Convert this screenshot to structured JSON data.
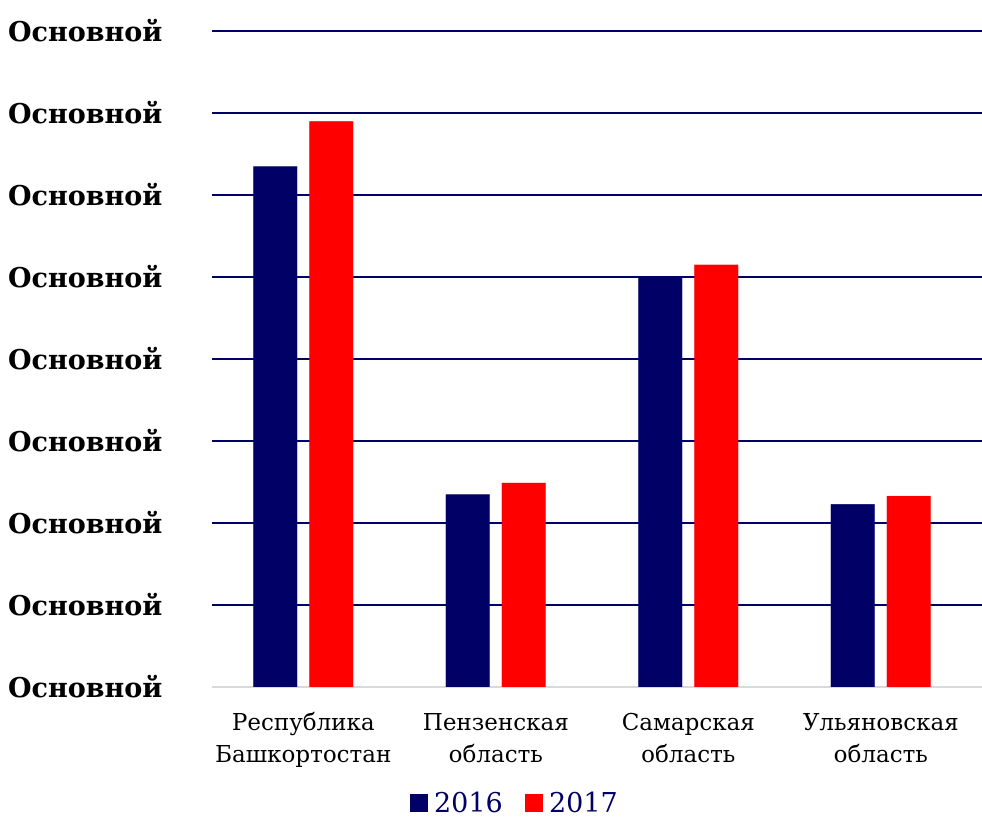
{
  "chart_data": {
    "type": "bar",
    "categories": [
      [
        "Республика",
        "Башкортостан"
      ],
      [
        "Пензенская",
        "область"
      ],
      [
        "Самарская",
        "область"
      ],
      [
        "Ульяновская",
        "область"
      ]
    ],
    "series": [
      {
        "name": "2016",
        "color": "#000066",
        "values": [
          6.35,
          2.35,
          5.0,
          2.23
        ]
      },
      {
        "name": "2017",
        "color": "#ff0000",
        "values": [
          6.9,
          2.49,
          5.15,
          2.33
        ]
      }
    ],
    "y_tick_labels": [
      "Основной",
      "Основной",
      "Основной",
      "Основной",
      "Основной",
      "Основной",
      "Основной",
      "Основной",
      "Основной"
    ],
    "ylim": [
      0,
      8
    ],
    "grid": true,
    "grid_color": "#000066",
    "legend_position": "bottom",
    "title": "",
    "xlabel": "",
    "ylabel": ""
  }
}
